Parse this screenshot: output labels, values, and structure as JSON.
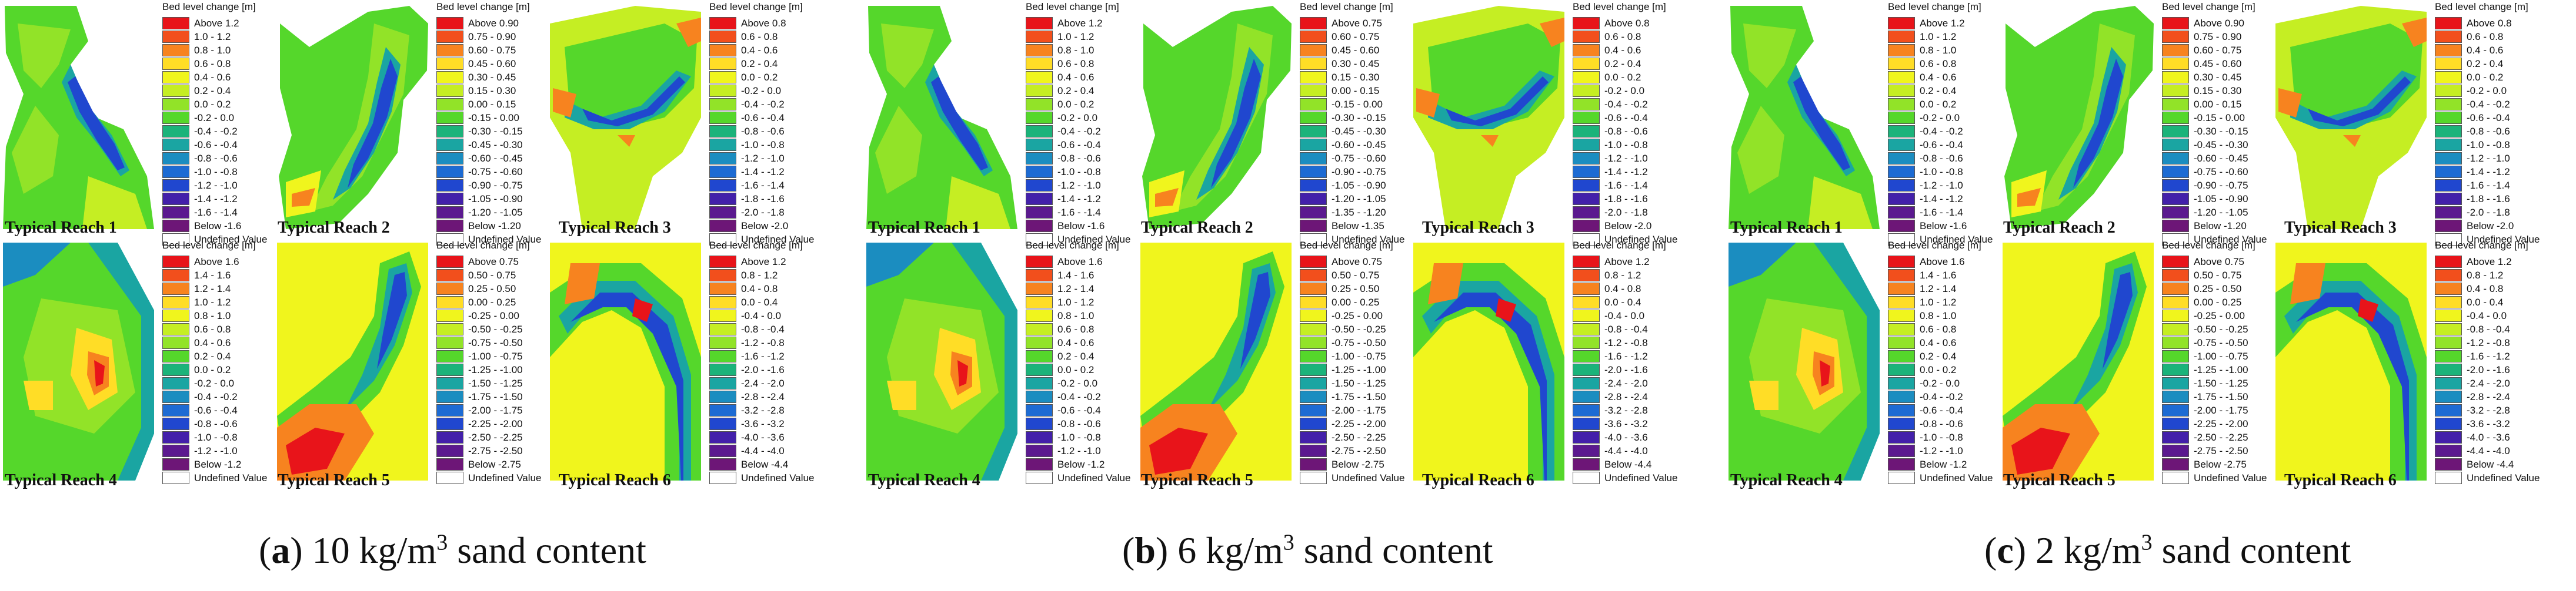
{
  "legend_title": "Bed level change [m]",
  "undefined_label": "Undefined Value",
  "colors": {
    "undefined": "#ffffff",
    "ramp": [
      "#e8141a",
      "#f24f1c",
      "#f7831f",
      "#fbb124",
      "#ffdd26",
      "#f0f51d",
      "#c5ee23",
      "#92e328",
      "#55d72b",
      "#23c84a",
      "#1bb37a",
      "#1aa5a2",
      "#1b8dc0",
      "#1d6bd3",
      "#2047cf",
      "#2d27c0",
      "#4320aa",
      "#5b198f",
      "#6d1677"
    ]
  },
  "reach_names": [
    "Typical Reach 1",
    "Typical Reach 2",
    "Typical Reach 3",
    "Typical Reach 4",
    "Typical Reach 5",
    "Typical Reach 6"
  ],
  "legend_sets": {
    "s12": [
      "Above 1.2",
      "1.0 - 1.2",
      "0.8 - 1.0",
      "0.6 - 0.8",
      "0.4 - 0.6",
      "0.2 - 0.4",
      "0.0 - 0.2",
      "-0.2 - 0.0",
      "-0.4 - -0.2",
      "-0.6 - -0.4",
      "-0.8 - -0.6",
      "-1.0 - -0.8",
      "-1.2 - -1.0",
      "-1.4 - -1.2",
      "-1.6 - -1.4",
      "Below -1.6"
    ],
    "s09": [
      "Above 0.90",
      "0.75 - 0.90",
      "0.60 - 0.75",
      "0.45 - 0.60",
      "0.30 - 0.45",
      "0.15 - 0.30",
      "0.00 - 0.15",
      "-0.15 - 0.00",
      "-0.30 - -0.15",
      "-0.45 - -0.30",
      "-0.60 - -0.45",
      "-0.75 - -0.60",
      "-0.90 - -0.75",
      "-1.05 - -0.90",
      "-1.20 - -1.05",
      "Below -1.20"
    ],
    "s08": [
      "Above 0.8",
      "0.6 - 0.8",
      "0.4 - 0.6",
      "0.2 - 0.4",
      "0.0 - 0.2",
      "-0.2 - 0.0",
      "-0.4 - -0.2",
      "-0.6 - -0.4",
      "-0.8 - -0.6",
      "-1.0 - -0.8",
      "-1.2 - -1.0",
      "-1.4 - -1.2",
      "-1.6 - -1.4",
      "-1.8 - -1.6",
      "-2.0 - -1.8",
      "Below -2.0"
    ],
    "s075": [
      "Above 0.75",
      "0.60 - 0.75",
      "0.45 - 0.60",
      "0.30 - 0.45",
      "0.15 - 0.30",
      "0.00 - 0.15",
      "-0.15 - 0.00",
      "-0.30 - -0.15",
      "-0.45 - -0.30",
      "-0.60 - -0.45",
      "-0.75 - -0.60",
      "-0.90 - -0.75",
      "-1.05 - -0.90",
      "-1.20 - -1.05",
      "-1.35 - -1.20",
      "Below -1.35"
    ],
    "s16": [
      "Above 1.6",
      "1.4 - 1.6",
      "1.2 - 1.4",
      "1.0 - 1.2",
      "0.8 - 1.0",
      "0.6 - 0.8",
      "0.4 - 0.6",
      "0.2 - 0.4",
      "0.0 - 0.2",
      "-0.2 - 0.0",
      "-0.4 - -0.2",
      "-0.6 - -0.4",
      "-0.8 - -0.6",
      "-1.0 - -0.8",
      "-1.2 - -1.0",
      "Below -1.2"
    ],
    "s075b": [
      "Above 0.75",
      "0.50 - 0.75",
      "0.25 - 0.50",
      "0.00 - 0.25",
      "-0.25 - 0.00",
      "-0.50 - -0.25",
      "-0.75 - -0.50",
      "-1.00 - -0.75",
      "-1.25 - -1.00",
      "-1.50 - -1.25",
      "-1.75 - -1.50",
      "-2.00 - -1.75",
      "-2.25 - -2.00",
      "-2.50 - -2.25",
      "-2.75 - -2.50",
      "Below -2.75"
    ],
    "s12b": [
      "Above 1.2",
      "0.8 - 1.2",
      "0.4 - 0.8",
      "0.0 - 0.4",
      "-0.4 - 0.0",
      "-0.8 - -0.4",
      "-1.2 - -0.8",
      "-1.6 - -1.2",
      "-2.0 - -1.6",
      "-2.4 - -2.0",
      "-2.8 - -2.4",
      "-3.2 - -2.8",
      "-3.6 - -3.2",
      "-4.0 - -3.6",
      "-4.4 - -4.0",
      "Below -4.4"
    ]
  },
  "panels": [
    {
      "tag": "a",
      "caption_rest": ") 10 kg/m",
      "sup": "3",
      "caption_tail": " sand content",
      "legends": [
        "s12",
        "s09",
        "s08",
        "s16",
        "s075b",
        "s12b"
      ]
    },
    {
      "tag": "b",
      "caption_rest": ") 6 kg/m",
      "sup": "3",
      "caption_tail": " sand content",
      "legends": [
        "s12",
        "s075",
        "s08",
        "s16",
        "s075b",
        "s12b"
      ]
    },
    {
      "tag": "c",
      "caption_rest": ") 2 kg/m",
      "sup": "3",
      "caption_tail": " sand content",
      "legends": [
        "s12",
        "s09",
        "s08",
        "s16",
        "s075b",
        "s12b"
      ]
    }
  ]
}
